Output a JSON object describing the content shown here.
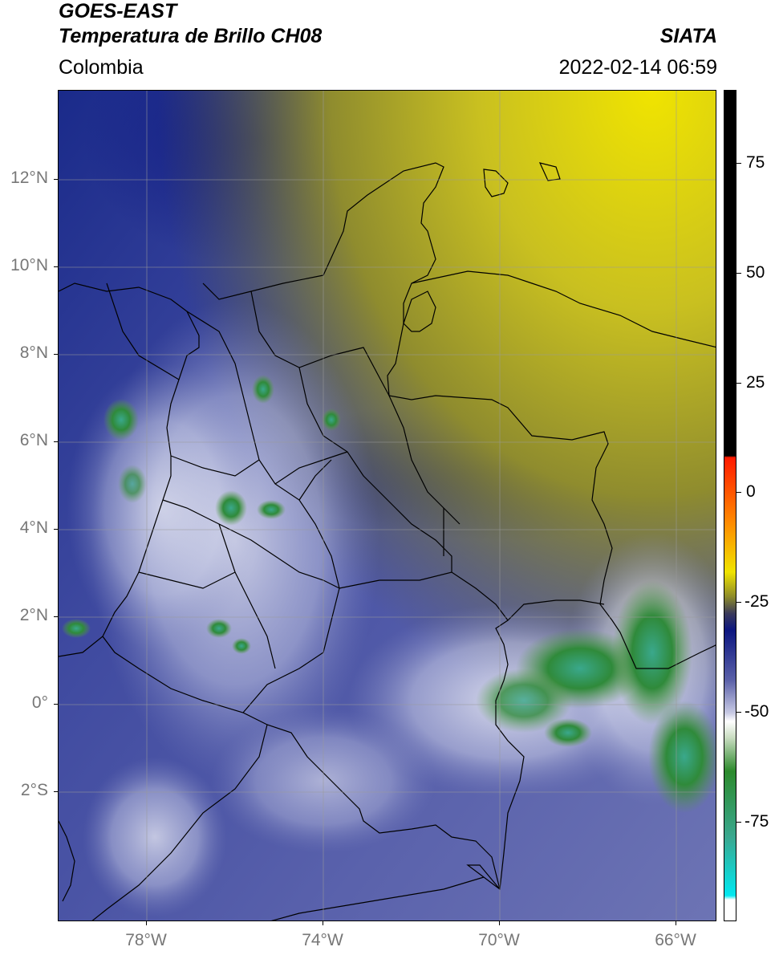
{
  "header": {
    "title_line1": "GOES-EAST",
    "title_line2": "Temperatura de Brillo CH08",
    "brand": "SIATA",
    "region": "Colombia",
    "timestamp": "2022-02-14 06:59"
  },
  "map": {
    "lat_labels": [
      "12°N",
      "10°N",
      "8°N",
      "6°N",
      "4°N",
      "2°N",
      "0°",
      "2°S"
    ],
    "lon_labels": [
      "78°W",
      "74°W",
      "70°W",
      "66°W"
    ]
  },
  "colorbar": {
    "ticks": [
      "75",
      "50",
      "25",
      "0",
      "-25",
      "-50",
      "-75"
    ],
    "colors": {
      "warm_black": "#000000",
      "red": "#ff1a00",
      "yellow": "#f0e400",
      "olive": "#8c8a2a",
      "navy": "#0c1680",
      "blue_mid": "#5a60a8",
      "white": "#ffffff",
      "green": "#2c8a2c",
      "teal": "#3aa890",
      "cyan": "#00e8f0"
    }
  }
}
